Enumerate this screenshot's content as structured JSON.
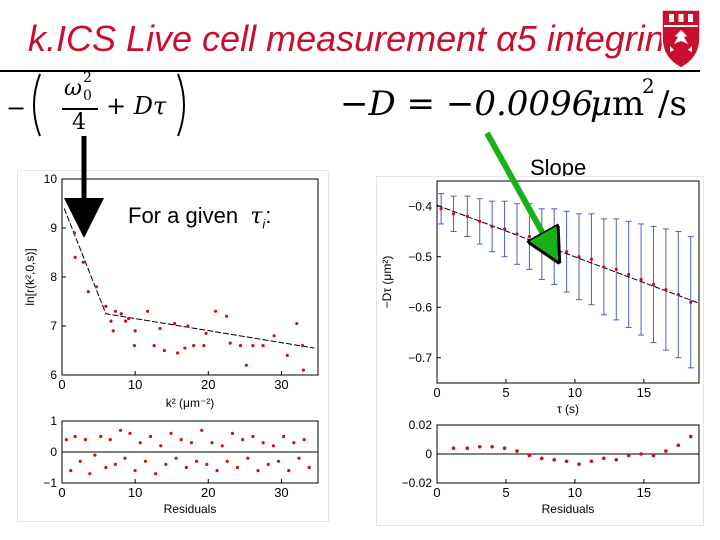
{
  "slide": {
    "title": "k.ICS Live cell measurement α5 integrin",
    "formula_left": {
      "minus": "−",
      "omega": "ω",
      "sub": "0",
      "sup": "2",
      "denominator": "4",
      "plus_term": "+ Dτ"
    },
    "formula_right": {
      "prefix": "−D = −0.0096",
      "mu": "μ",
      "unit_m": "m",
      "unit_sup": "2",
      "unit_tail": "/s"
    },
    "slope_label": "Slope",
    "for_given_label": "For a given",
    "for_given_symbol": "τ",
    "for_given_sub": "i",
    "for_given_colon": ":"
  },
  "chart_data": [
    {
      "type": "scatter",
      "name": "ln r vs k squared",
      "xlabel": "k² (μm⁻²)",
      "ylabel": "ln[r(k²,0,s)]",
      "xlim": [
        0,
        35
      ],
      "ylim": [
        6,
        10
      ],
      "xticks": [
        "0",
        "10",
        "20",
        "30"
      ],
      "xtick_values": [
        0,
        10,
        20,
        30
      ],
      "yticks": [
        "6",
        "7",
        "8",
        "9",
        "10"
      ],
      "ytick_values": [
        6,
        7,
        8,
        9,
        10
      ],
      "points": [
        [
          1.7,
          8.9
        ],
        [
          1.8,
          8.4
        ],
        [
          2.9,
          8.3
        ],
        [
          3.6,
          7.7
        ],
        [
          4.7,
          7.8
        ],
        [
          6.0,
          7.4
        ],
        [
          6.7,
          7.1
        ],
        [
          7.0,
          6.9
        ],
        [
          7.3,
          7.3
        ],
        [
          8.1,
          7.25
        ],
        [
          8.7,
          7.1
        ],
        [
          9.1,
          7.15
        ],
        [
          9.9,
          6.6
        ],
        [
          10.0,
          6.9
        ],
        [
          11.7,
          7.3
        ],
        [
          12.6,
          6.6
        ],
        [
          13.4,
          6.95
        ],
        [
          14.0,
          6.5
        ],
        [
          15.4,
          7.05
        ],
        [
          15.8,
          6.45
        ],
        [
          16.8,
          6.55
        ],
        [
          17.2,
          7.0
        ],
        [
          18.0,
          6.6
        ],
        [
          19.4,
          6.6
        ],
        [
          19.7,
          6.85
        ],
        [
          21.0,
          7.3
        ],
        [
          22.5,
          7.2
        ],
        [
          23.0,
          6.65
        ],
        [
          24.4,
          6.6
        ],
        [
          25.2,
          6.2
        ],
        [
          26.1,
          6.6
        ],
        [
          27.5,
          6.6
        ],
        [
          29.0,
          6.8
        ],
        [
          30.8,
          6.4
        ],
        [
          32.1,
          7.05
        ],
        [
          32.9,
          6.6
        ],
        [
          33.0,
          6.1
        ]
      ],
      "fit_line": [
        [
          0.3,
          9.4
        ],
        [
          6.0,
          7.25
        ],
        [
          34.5,
          6.55
        ]
      ]
    },
    {
      "type": "scatter",
      "name": "left residuals",
      "xlabel": "Residuals",
      "xlim": [
        0,
        35
      ],
      "ylim": [
        -1,
        1
      ],
      "xticks": [
        "0",
        "10",
        "20",
        "30"
      ],
      "xtick_values": [
        0,
        10,
        20,
        30
      ],
      "yticks": [
        "−1",
        "0",
        "1"
      ],
      "ytick_values": [
        -1,
        0,
        1
      ],
      "points": [
        [
          0.6,
          0.4
        ],
        [
          1.2,
          -0.6
        ],
        [
          1.8,
          0.5
        ],
        [
          2.5,
          -0.3
        ],
        [
          3.2,
          0.4
        ],
        [
          3.8,
          -0.7
        ],
        [
          4.5,
          -0.1
        ],
        [
          5.3,
          0.5
        ],
        [
          6.0,
          -0.5
        ],
        [
          6.6,
          0.4
        ],
        [
          7.3,
          -0.4
        ],
        [
          8.0,
          0.7
        ],
        [
          8.6,
          -0.2
        ],
        [
          9.3,
          0.6
        ],
        [
          10.0,
          -0.6
        ],
        [
          10.7,
          0.3
        ],
        [
          11.4,
          -0.3
        ],
        [
          12.1,
          0.5
        ],
        [
          12.8,
          -0.7
        ],
        [
          13.5,
          0.2
        ],
        [
          14.2,
          -0.4
        ],
        [
          14.9,
          0.6
        ],
        [
          15.6,
          -0.2
        ],
        [
          16.3,
          0.4
        ],
        [
          17.0,
          -0.5
        ],
        [
          17.7,
          0.3
        ],
        [
          18.4,
          -0.3
        ],
        [
          19.1,
          0.7
        ],
        [
          19.8,
          -0.4
        ],
        [
          20.5,
          0.3
        ],
        [
          21.2,
          -0.6
        ],
        [
          21.9,
          0.2
        ],
        [
          22.6,
          -0.3
        ],
        [
          23.3,
          0.6
        ],
        [
          24.0,
          -0.5
        ],
        [
          24.7,
          0.4
        ],
        [
          25.4,
          -0.2
        ],
        [
          26.1,
          0.5
        ],
        [
          26.8,
          -0.6
        ],
        [
          27.5,
          0.3
        ],
        [
          28.2,
          -0.4
        ],
        [
          28.9,
          0.2
        ],
        [
          29.6,
          -0.3
        ],
        [
          30.3,
          0.5
        ],
        [
          31.0,
          -0.6
        ],
        [
          31.7,
          0.3
        ],
        [
          32.4,
          -0.2
        ],
        [
          33.1,
          0.4
        ],
        [
          33.8,
          -0.5
        ]
      ],
      "zero_line": true
    },
    {
      "type": "scatter",
      "name": "minus D tau vs tau",
      "xlabel": "τ (s)",
      "ylabel": "−Dτ (μm²)",
      "xlim": [
        0,
        19
      ],
      "ylim": [
        -0.75,
        -0.35
      ],
      "xticks": [
        "0",
        "5",
        "10",
        "15"
      ],
      "xtick_values": [
        0,
        5,
        10,
        15
      ],
      "yticks": [
        "−0.4",
        "−0.5",
        "−0.6",
        "−0.7"
      ],
      "ytick_values": [
        -0.4,
        -0.5,
        -0.6,
        -0.7
      ],
      "points": [
        [
          0.3,
          -0.405
        ],
        [
          1.2,
          -0.415
        ],
        [
          2.2,
          -0.42
        ],
        [
          3.1,
          -0.43
        ],
        [
          4.0,
          -0.44
        ],
        [
          4.9,
          -0.445
        ],
        [
          5.8,
          -0.455
        ],
        [
          6.7,
          -0.46
        ],
        [
          7.6,
          -0.475
        ],
        [
          8.5,
          -0.48
        ],
        [
          9.4,
          -0.49
        ],
        [
          10.3,
          -0.5
        ],
        [
          11.2,
          -0.505
        ],
        [
          12.1,
          -0.52
        ],
        [
          13.0,
          -0.525
        ],
        [
          13.9,
          -0.535
        ],
        [
          14.8,
          -0.545
        ],
        [
          15.7,
          -0.555
        ],
        [
          16.6,
          -0.565
        ],
        [
          17.5,
          -0.575
        ],
        [
          18.4,
          -0.59
        ]
      ],
      "error_bars": [
        0.03,
        0.035,
        0.04,
        0.045,
        0.05,
        0.055,
        0.06,
        0.065,
        0.07,
        0.075,
        0.08,
        0.085,
        0.09,
        0.095,
        0.1,
        0.105,
        0.11,
        0.115,
        0.12,
        0.125,
        0.13
      ],
      "fit_line": [
        [
          0,
          -0.398
        ],
        [
          19,
          -0.592
        ]
      ]
    },
    {
      "type": "scatter",
      "name": "right residuals",
      "xlabel": "Residuals",
      "xlim": [
        0,
        19
      ],
      "ylim": [
        -0.02,
        0.02
      ],
      "xticks": [
        "0",
        "5",
        "10",
        "15"
      ],
      "xtick_values": [
        0,
        5,
        10,
        15
      ],
      "yticks": [
        "0.02",
        "0",
        "−0.02"
      ],
      "ytick_values": [
        0.02,
        0,
        -0.02
      ],
      "points": [
        [
          1.2,
          0.004
        ],
        [
          2.2,
          0.004
        ],
        [
          3.1,
          0.005
        ],
        [
          4.0,
          0.005
        ],
        [
          4.9,
          0.004
        ],
        [
          5.8,
          0.002
        ],
        [
          6.7,
          -0.001
        ],
        [
          7.6,
          -0.003
        ],
        [
          8.5,
          -0.004
        ],
        [
          9.4,
          -0.005
        ],
        [
          10.3,
          -0.007
        ],
        [
          11.2,
          -0.005
        ],
        [
          12.1,
          -0.003
        ],
        [
          13.0,
          -0.004
        ],
        [
          13.9,
          -0.001
        ],
        [
          14.8,
          0.0
        ],
        [
          15.7,
          -0.001
        ],
        [
          16.6,
          0.002
        ],
        [
          17.5,
          0.006
        ],
        [
          18.4,
          0.012
        ]
      ],
      "zero_line": true
    }
  ]
}
